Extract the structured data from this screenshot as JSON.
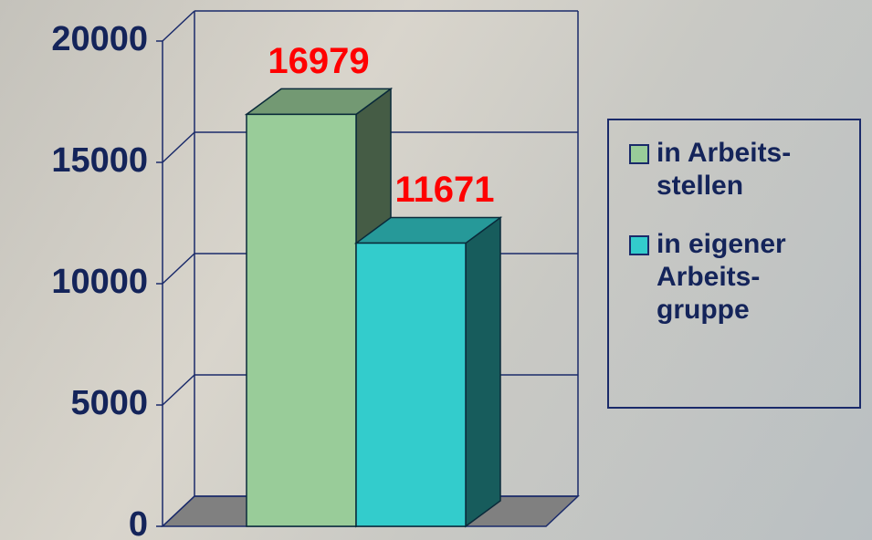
{
  "chart_data": {
    "type": "bar3d",
    "series": [
      {
        "name": "in Arbeits- stellen",
        "color": "#99cc99",
        "values": [
          16979
        ]
      },
      {
        "name": "in eigener Arbeits- gruppe",
        "color": "#33cccc",
        "values": [
          11671
        ]
      }
    ],
    "ylim": [
      0,
      20000
    ],
    "yticks": [
      0,
      5000,
      10000,
      15000,
      20000
    ],
    "grid": true
  }
}
